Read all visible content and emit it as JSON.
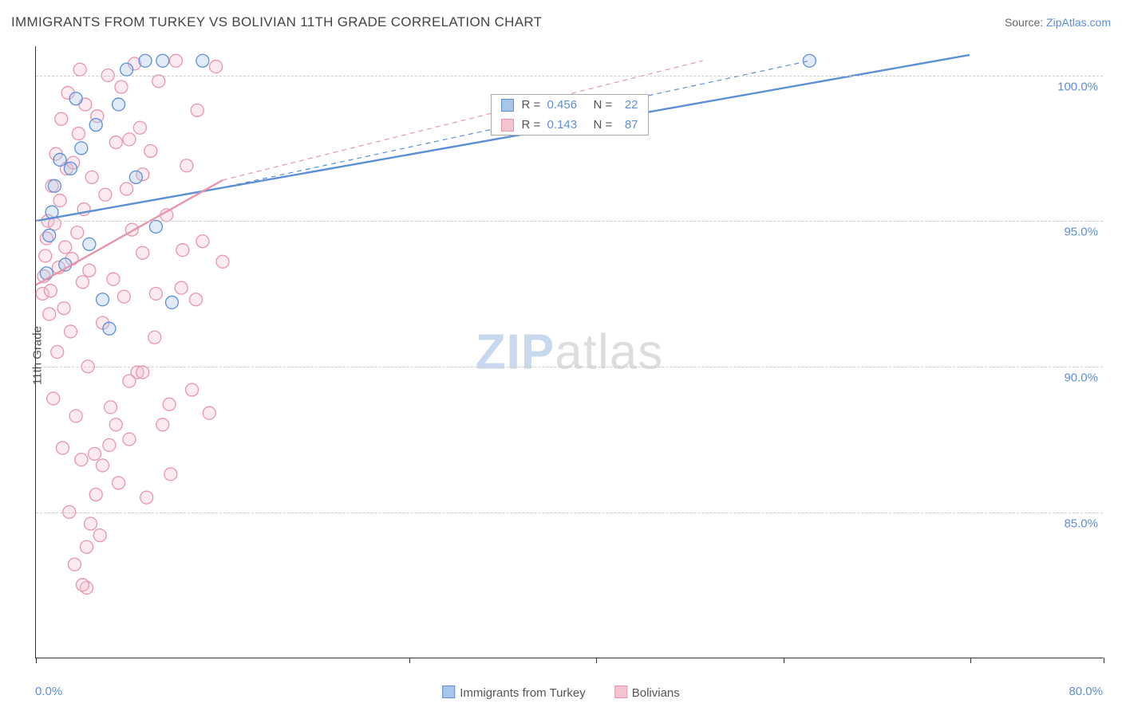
{
  "title": "IMMIGRANTS FROM TURKEY VS BOLIVIAN 11TH GRADE CORRELATION CHART",
  "source_label": "Source: ",
  "source_name": "ZipAtlas.com",
  "ylabel": "11th Grade",
  "watermark_zip": "ZIP",
  "watermark_atlas": "atlas",
  "chart": {
    "type": "scatter",
    "background_color": "#ffffff",
    "grid_color": "#cccccc",
    "axis_color": "#333333",
    "label_color": "#555555",
    "value_color": "#5b8fd6",
    "title_color": "#444444",
    "title_fontsize": 17,
    "label_fontsize": 15,
    "tick_fontsize": 15,
    "xlim": [
      0,
      80
    ],
    "ylim": [
      80,
      101
    ],
    "x_tick_positions": [
      0,
      28,
      42,
      56,
      70,
      80
    ],
    "x_start_label": "0.0%",
    "x_end_label": "80.0%",
    "y_ticks": [
      {
        "value": 100,
        "label": "100.0%"
      },
      {
        "value": 95,
        "label": "95.0%"
      },
      {
        "value": 90,
        "label": "90.0%"
      },
      {
        "value": 85,
        "label": "85.0%"
      }
    ],
    "marker_radius": 8,
    "marker_fill_opacity": 0.35,
    "marker_stroke_width": 1.3,
    "line_width": 2.4,
    "dash_pattern": "6,5",
    "series": [
      {
        "id": "turkey",
        "label": "Immigrants from Turkey",
        "color": "#5b8fd6",
        "fill": "#a9c5ea",
        "R": "0.456",
        "N": "22",
        "regression": {
          "x1": 0,
          "y1": 95.0,
          "x2": 70,
          "y2": 100.7
        },
        "dashed_ext": {
          "x1": 12.5,
          "y1": 96.0,
          "x2": 58,
          "y2": 100.5
        },
        "points": [
          [
            0.8,
            93.2
          ],
          [
            1.0,
            94.5
          ],
          [
            1.2,
            95.3
          ],
          [
            1.4,
            96.2
          ],
          [
            1.8,
            97.1
          ],
          [
            2.2,
            93.5
          ],
          [
            2.6,
            96.8
          ],
          [
            3.0,
            99.2
          ],
          [
            3.4,
            97.5
          ],
          [
            4.0,
            94.2
          ],
          [
            4.5,
            98.3
          ],
          [
            5.0,
            92.3
          ],
          [
            5.5,
            91.3
          ],
          [
            6.2,
            99.0
          ],
          [
            6.8,
            100.2
          ],
          [
            7.5,
            96.5
          ],
          [
            8.2,
            100.5
          ],
          [
            9.0,
            94.8
          ],
          [
            9.5,
            100.5
          ],
          [
            10.2,
            92.2
          ],
          [
            12.5,
            100.5
          ],
          [
            58.0,
            100.5
          ]
        ]
      },
      {
        "id": "bolivians",
        "label": "Bolivians",
        "color": "#e895ab",
        "fill": "#f4c3d0",
        "R": "0.143",
        "N": "87",
        "regression": {
          "x1": 0,
          "y1": 92.8,
          "x2": 14,
          "y2": 96.4
        },
        "dashed_ext": {
          "x1": 14,
          "y1": 96.4,
          "x2": 50,
          "y2": 100.5
        },
        "points": [
          [
            0.5,
            92.5
          ],
          [
            0.6,
            93.1
          ],
          [
            0.7,
            93.8
          ],
          [
            0.8,
            94.4
          ],
          [
            0.9,
            95.0
          ],
          [
            1.0,
            91.8
          ],
          [
            1.1,
            92.6
          ],
          [
            1.2,
            96.2
          ],
          [
            1.3,
            88.9
          ],
          [
            1.4,
            94.9
          ],
          [
            1.5,
            97.3
          ],
          [
            1.6,
            90.5
          ],
          [
            1.7,
            93.4
          ],
          [
            1.8,
            95.7
          ],
          [
            1.9,
            98.5
          ],
          [
            2.0,
            87.2
          ],
          [
            2.1,
            92.0
          ],
          [
            2.2,
            94.1
          ],
          [
            2.3,
            96.8
          ],
          [
            2.4,
            99.4
          ],
          [
            2.5,
            85.0
          ],
          [
            2.6,
            91.2
          ],
          [
            2.7,
            93.7
          ],
          [
            2.8,
            97.0
          ],
          [
            2.9,
            83.2
          ],
          [
            3.0,
            88.3
          ],
          [
            3.1,
            94.6
          ],
          [
            3.2,
            98.0
          ],
          [
            3.3,
            100.2
          ],
          [
            3.4,
            86.8
          ],
          [
            3.5,
            92.9
          ],
          [
            3.6,
            95.4
          ],
          [
            3.7,
            99.0
          ],
          [
            3.8,
            82.4
          ],
          [
            3.9,
            90.0
          ],
          [
            4.0,
            93.3
          ],
          [
            4.2,
            96.5
          ],
          [
            4.4,
            87.0
          ],
          [
            4.6,
            98.6
          ],
          [
            4.8,
            84.2
          ],
          [
            5.0,
            91.5
          ],
          [
            5.2,
            95.9
          ],
          [
            5.4,
            100.0
          ],
          [
            5.6,
            88.6
          ],
          [
            5.8,
            93.0
          ],
          [
            6.0,
            97.7
          ],
          [
            6.2,
            86.0
          ],
          [
            6.4,
            99.6
          ],
          [
            6.6,
            92.4
          ],
          [
            6.8,
            96.1
          ],
          [
            7.0,
            87.5
          ],
          [
            7.2,
            94.7
          ],
          [
            7.4,
            100.4
          ],
          [
            7.6,
            89.8
          ],
          [
            7.8,
            98.2
          ],
          [
            8.0,
            93.9
          ],
          [
            8.3,
            85.5
          ],
          [
            8.6,
            97.4
          ],
          [
            8.9,
            91.0
          ],
          [
            9.2,
            99.8
          ],
          [
            9.5,
            88.0
          ],
          [
            9.8,
            95.2
          ],
          [
            10.1,
            86.3
          ],
          [
            10.5,
            100.5
          ],
          [
            10.9,
            92.7
          ],
          [
            11.3,
            96.9
          ],
          [
            11.7,
            89.2
          ],
          [
            12.1,
            98.8
          ],
          [
            12.5,
            94.3
          ],
          [
            13.0,
            88.4
          ],
          [
            13.5,
            100.3
          ],
          [
            14.0,
            93.6
          ],
          [
            3.5,
            82.5
          ],
          [
            3.8,
            83.8
          ],
          [
            4.1,
            84.6
          ],
          [
            4.5,
            85.6
          ],
          [
            5.0,
            86.6
          ],
          [
            5.5,
            87.3
          ],
          [
            6.0,
            88.0
          ],
          [
            7.0,
            89.5
          ],
          [
            8.0,
            89.8
          ],
          [
            9.0,
            92.5
          ],
          [
            10.0,
            88.7
          ],
          [
            11.0,
            94.0
          ],
          [
            12.0,
            92.3
          ],
          [
            7.0,
            97.8
          ],
          [
            8.0,
            96.6
          ]
        ]
      }
    ]
  }
}
